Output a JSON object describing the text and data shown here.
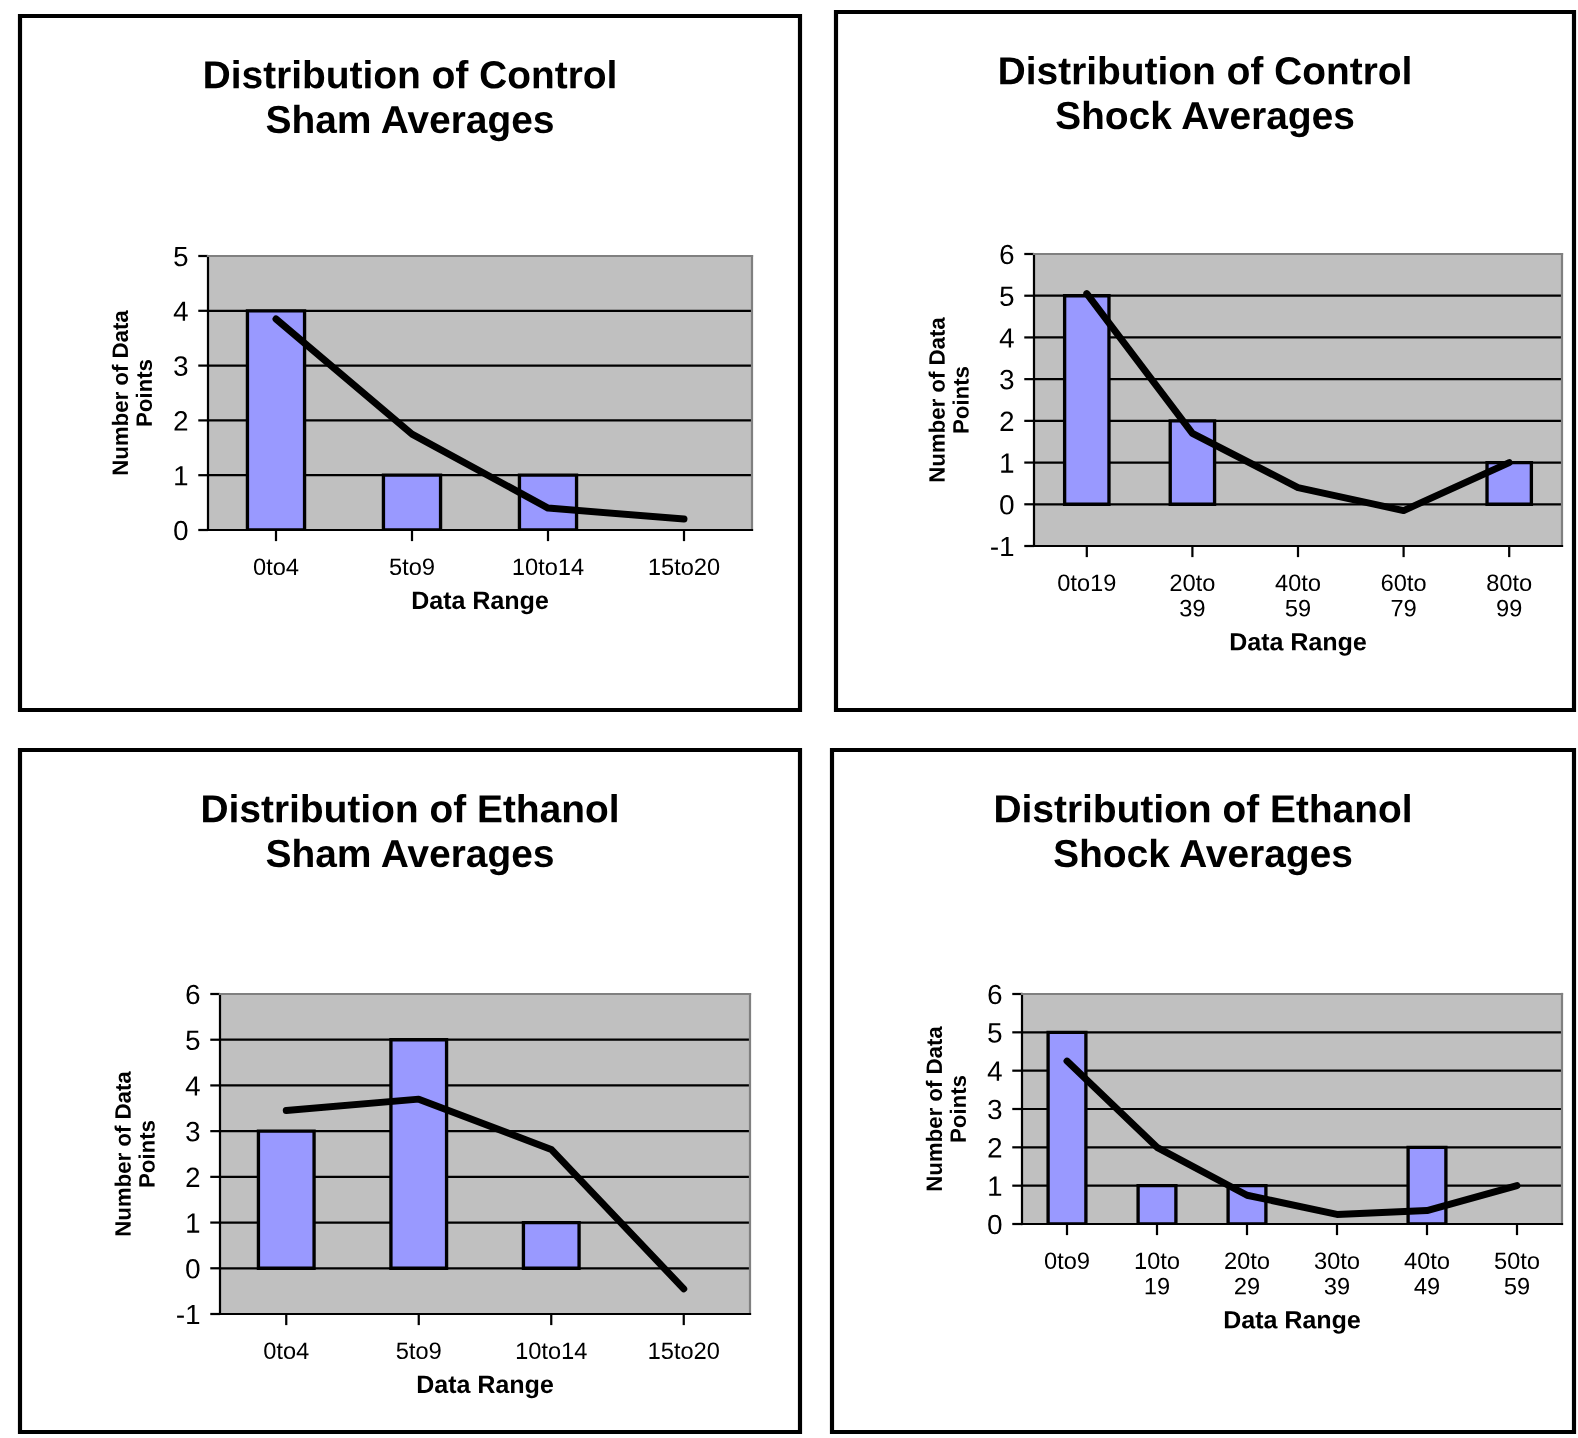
{
  "chart_data": [
    {
      "type": "bar",
      "title": "Distribution of Control\nSham Averages",
      "xlabel": "Data Range",
      "ylabel": "Number of Data\nPoints",
      "categories": [
        "0to4",
        "5to9",
        "10to14",
        "15to20"
      ],
      "series": [
        {
          "color": "#9999ff",
          "values": [
            4,
            1,
            1,
            0
          ]
        },
        {
          "type": "line",
          "color": "#000000",
          "values": [
            3.85,
            1.75,
            0.4,
            0.2
          ]
        }
      ],
      "ylim": [
        0,
        5
      ],
      "yticks": [
        0,
        1,
        2,
        3,
        4,
        5
      ],
      "grid": "y"
    },
    {
      "type": "bar",
      "title": "Distribution of Control\nShock Averages",
      "xlabel": "Data Range",
      "ylabel": "Number of Data\nPoints",
      "categories": [
        "0to19",
        "20to 39",
        "40to 59",
        "60to 79",
        "80to 99"
      ],
      "series": [
        {
          "color": "#9999ff",
          "values": [
            5,
            2,
            0,
            0,
            1
          ]
        },
        {
          "type": "line",
          "color": "#000000",
          "values": [
            5.05,
            1.7,
            0.4,
            -0.15,
            1.0
          ]
        }
      ],
      "ylim": [
        -1,
        6
      ],
      "yticks": [
        -1,
        0,
        1,
        2,
        3,
        4,
        5,
        6
      ],
      "grid": "y"
    },
    {
      "type": "bar",
      "title": "Distribution of Ethanol\nSham Averages",
      "xlabel": "Data Range",
      "ylabel": "Number of Data\nPoints",
      "categories": [
        "0to4",
        "5to9",
        "10to14",
        "15to20"
      ],
      "series": [
        {
          "color": "#9999ff",
          "values": [
            3,
            5,
            1,
            0
          ]
        },
        {
          "type": "line",
          "color": "#000000",
          "values": [
            3.45,
            3.7,
            2.6,
            -0.45
          ]
        }
      ],
      "ylim": [
        -1,
        6
      ],
      "yticks": [
        -1,
        0,
        1,
        2,
        3,
        4,
        5,
        6
      ],
      "grid": "y"
    },
    {
      "type": "bar",
      "title": "Distribution of Ethanol\nShock Averages",
      "xlabel": "Data Range",
      "ylabel": "Number of Data\nPoints",
      "categories": [
        "0to9",
        "10to 19",
        "20to 29",
        "30to 39",
        "40to 49",
        "50to 59"
      ],
      "series": [
        {
          "color": "#9999ff",
          "values": [
            5,
            1,
            1,
            0,
            2,
            0
          ]
        },
        {
          "type": "line",
          "color": "#000000",
          "values": [
            4.25,
            2.0,
            0.75,
            0.25,
            0.35,
            1.0
          ]
        }
      ],
      "ylim": [
        0,
        6
      ],
      "yticks": [
        0,
        1,
        2,
        3,
        4,
        5,
        6
      ],
      "grid": "y"
    }
  ]
}
